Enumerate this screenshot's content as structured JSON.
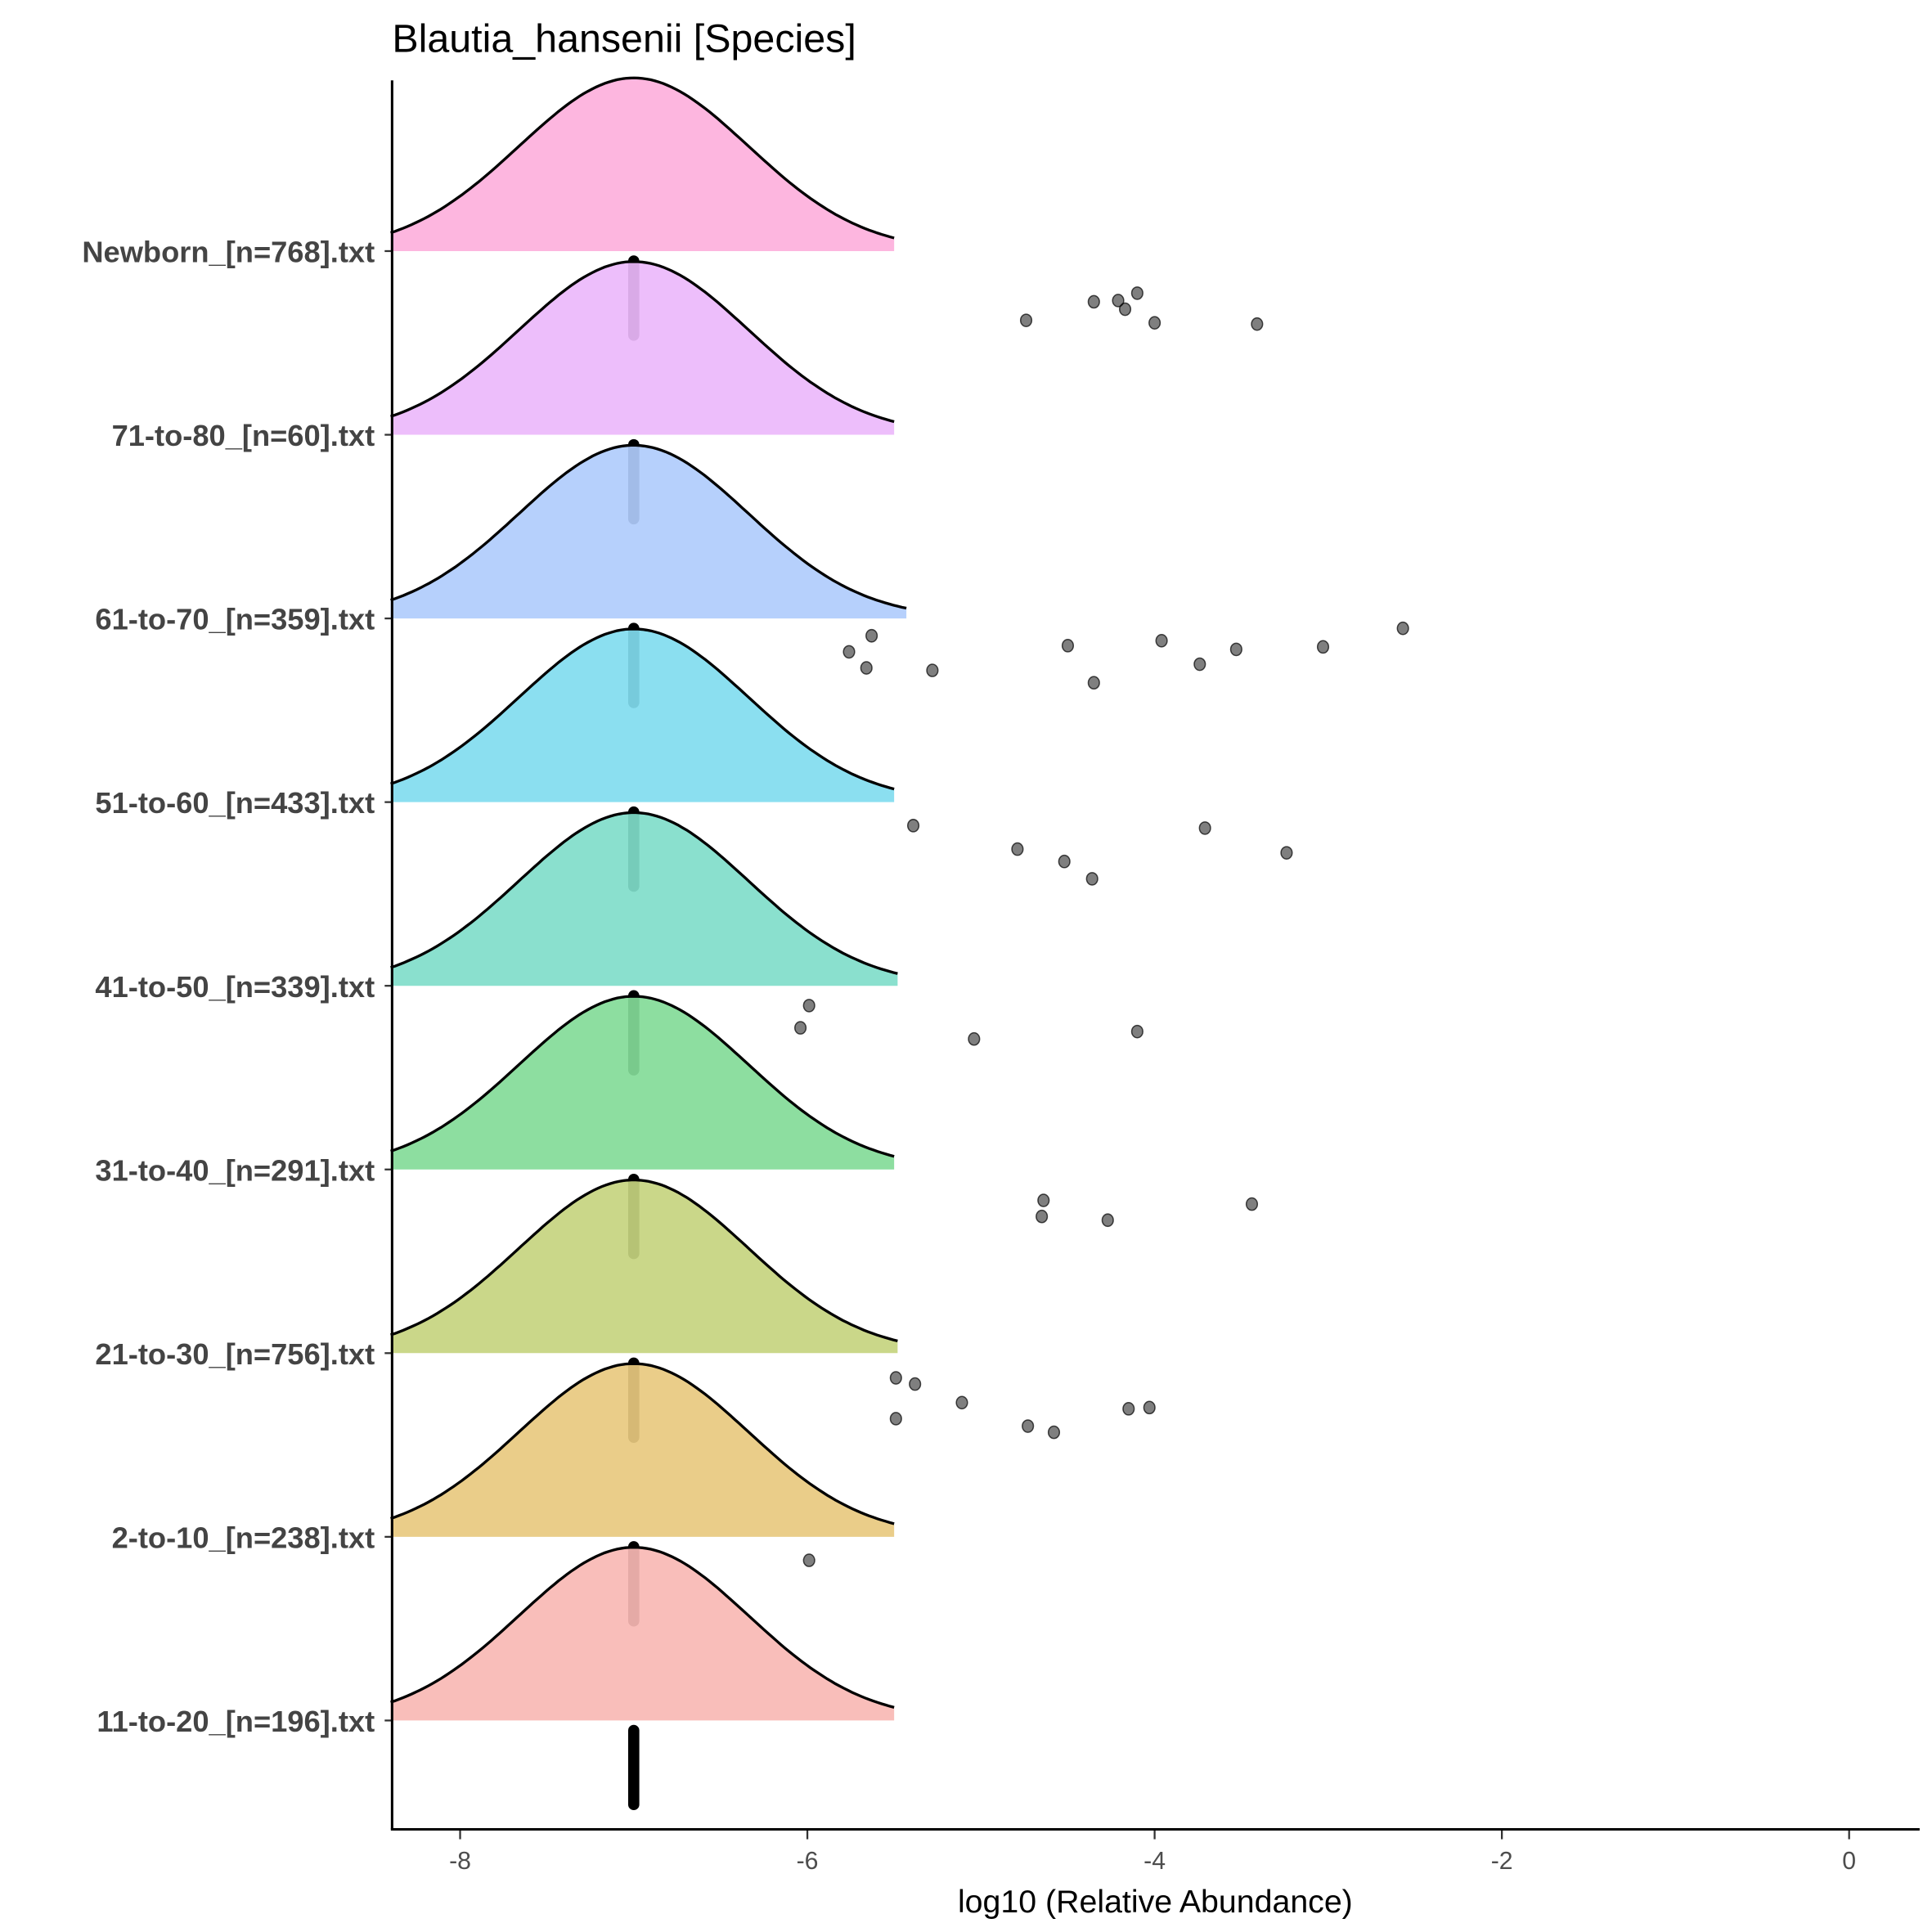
{
  "chart_data": {
    "type": "ridgeline",
    "title": "Blautia_hansenii [Species]",
    "xlabel": "log10 (Relative Abundance)",
    "ylabel": "",
    "xlim": [
      -8.4,
      0.4
    ],
    "xticks": [
      -8,
      -6,
      -4,
      -2,
      0
    ],
    "xtick_labels": [
      "-8",
      "-6",
      "-4",
      "-2",
      "0"
    ],
    "grid": false,
    "legend": "none",
    "groups": [
      {
        "name": "Newborn_[n=768].txt",
        "color": "#fdb0dc",
        "density_mean": -7,
        "density_sd": 0.66,
        "range": [
          -8.4,
          -5.5
        ],
        "points": [
          -4.74,
          -4.35,
          -4.21,
          -4.17,
          -4.1,
          -4.0,
          -3.41
        ]
      },
      {
        "name": "71-to-80_[n=60].txt",
        "color": "#ebb8fb",
        "density_mean": -7,
        "density_sd": 0.66,
        "range": [
          -8.4,
          -5.5
        ],
        "points": []
      },
      {
        "name": "61-to-70_[n=359].txt",
        "color": "#b0ccfc",
        "density_mean": -7,
        "density_sd": 0.66,
        "range": [
          -8.4,
          -5.43
        ],
        "points": [
          -5.63,
          -5.76,
          -5.66,
          -5.28,
          -4.5,
          -4.35,
          -3.96,
          -3.74,
          -3.53,
          -3.03,
          -2.57
        ]
      },
      {
        "name": "51-to-60_[n=433].txt",
        "color": "#81dcef",
        "density_mean": -7,
        "density_sd": 0.66,
        "range": [
          -8.4,
          -5.5
        ],
        "points": [
          -5.39,
          -4.79,
          -4.52,
          -4.36,
          -3.71,
          -3.24
        ]
      },
      {
        "name": "41-to-50_[n=339].txt",
        "color": "#80ddca",
        "density_mean": -7,
        "density_sd": 0.66,
        "range": [
          -8.4,
          -5.48
        ],
        "points": [
          -5.99,
          -6.04,
          -5.04,
          -4.1
        ]
      },
      {
        "name": "31-to-40_[n=291].txt",
        "color": "#83db98",
        "density_mean": -7,
        "density_sd": 0.66,
        "range": [
          -8.4,
          -5.5
        ],
        "points": [
          -4.64,
          -4.65,
          -4.27,
          -3.44
        ]
      },
      {
        "name": "21-to-30_[n=756].txt",
        "color": "#c6d47f",
        "density_mean": -7,
        "density_sd": 0.66,
        "range": [
          -8.4,
          -5.48
        ],
        "points": [
          -5.49,
          -5.38,
          -5.11,
          -5.49,
          -4.73,
          -4.58,
          -4.15,
          -4.03
        ]
      },
      {
        "name": "2-to-10_[n=238].txt",
        "color": "#e8c97f",
        "density_mean": -7,
        "density_sd": 0.66,
        "range": [
          -8.4,
          -5.5
        ],
        "points": [
          -5.99
        ]
      },
      {
        "name": "11-to-20_[n=196].txt",
        "color": "#f8b8b4",
        "density_mean": -7,
        "density_sd": 0.66,
        "range": [
          -8.4,
          -5.5
        ],
        "points": []
      }
    ],
    "zero_value_marker": -7
  }
}
